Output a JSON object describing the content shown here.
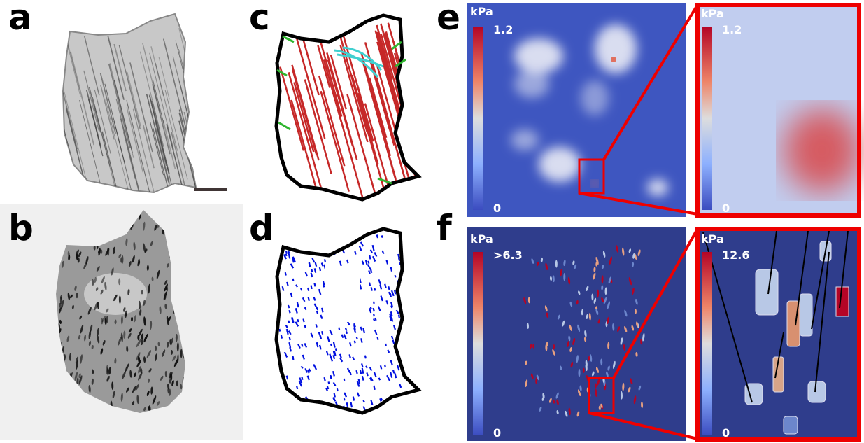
{
  "panels": [
    {
      "label": "a"
    },
    {
      "label": "b"
    },
    {
      "label": "c"
    },
    {
      "label": "d"
    },
    {
      "label": "e"
    },
    {
      "label": "f"
    }
  ],
  "colorbars": [
    {
      "unit": "kPa",
      "max": "1.2",
      "min": "0"
    },
    {
      "unit": "kPa",
      "max": "1.2",
      "min": "0"
    },
    {
      "unit": "kPa",
      "max": ">6.3",
      "min": "0"
    },
    {
      "unit": "kPa",
      "max": "12.6",
      "min": "0"
    }
  ]
}
